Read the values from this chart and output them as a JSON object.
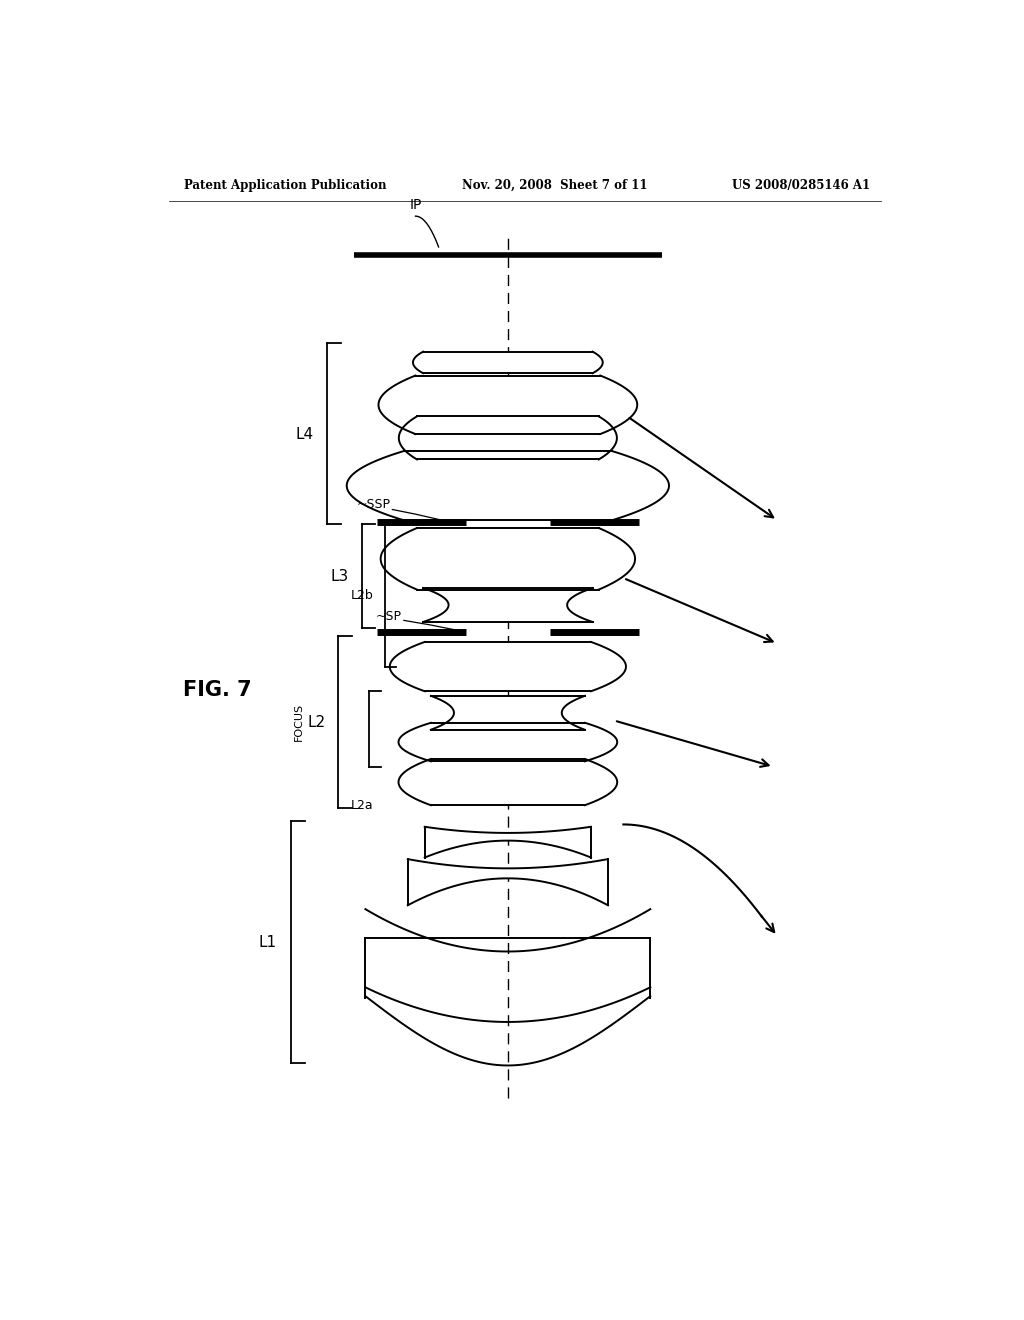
{
  "title_left": "Patent Application Publication",
  "title_mid": "Nov. 20, 2008  Sheet 7 of 11",
  "title_right": "US 2008/0285146 A1",
  "fig_label": "FIG. 7",
  "bg_color": "#ffffff",
  "text_color": "#000000"
}
